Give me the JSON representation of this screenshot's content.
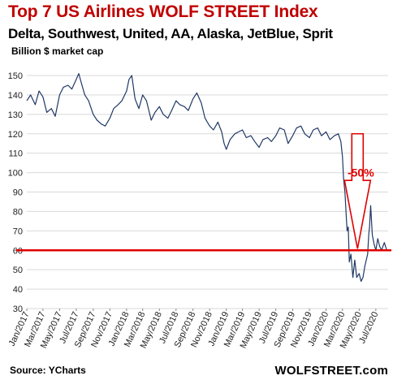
{
  "title": "Top 7 US Airlines WOLF STREET Index",
  "subtitle": "Delta, Southwest, United, AA, Alaska, JetBlue, Sprit",
  "units": "Billion $ market cap",
  "source": "Source: YCharts",
  "brand": "WOLFSTREET.com",
  "colors": {
    "title": "#c00000",
    "series": "#1f3864",
    "reference": "#e00000",
    "arrow_border": "#e00000",
    "arrow_fill": "#ffffff",
    "grid": "#d9d9d9"
  },
  "chart_data": {
    "type": "line",
    "title": "Top 7 US Airlines WOLF STREET Index",
    "subtitle": "Delta, Southwest, United, AA, Alaska, JetBlue, Sprit",
    "ylabel": "Billion $ market cap",
    "xlabel": "",
    "ylim": [
      30,
      150
    ],
    "yticks": [
      30,
      40,
      50,
      60,
      70,
      80,
      90,
      100,
      110,
      120,
      130,
      140,
      150
    ],
    "xlim": [
      "2017-01-01",
      "2020-08-15"
    ],
    "xticks": [
      "Jan/2017",
      "Mar/2017",
      "May/2017",
      "Jul/2017",
      "Sep/2017",
      "Nov/2017",
      "Jan/2018",
      "Mar/2018",
      "May/2018",
      "Jul/2018",
      "Sep/2018",
      "Nov/2018",
      "Jan/2019",
      "Mar/2019",
      "May/2019",
      "Jul/2019",
      "Sep/2019",
      "Nov/2019",
      "Jan/2020",
      "Mar/2020",
      "May/2020",
      "Jul/2020"
    ],
    "grid": {
      "horizontal": true,
      "vertical": false
    },
    "legend": "none",
    "series": [
      {
        "x": [
          "2017-01-01",
          "2017-01-15",
          "2017-02-01",
          "2017-02-15",
          "2017-03-01",
          "2017-03-15",
          "2017-04-01",
          "2017-04-15",
          "2017-05-01",
          "2017-05-15",
          "2017-06-01",
          "2017-06-15",
          "2017-07-01",
          "2017-07-10",
          "2017-07-20",
          "2017-08-01",
          "2017-08-15",
          "2017-09-01",
          "2017-09-15",
          "2017-10-01",
          "2017-10-15",
          "2017-11-01",
          "2017-11-15",
          "2017-12-01",
          "2017-12-15",
          "2018-01-01",
          "2018-01-10",
          "2018-01-20",
          "2018-02-01",
          "2018-02-15",
          "2018-03-01",
          "2018-03-15",
          "2018-04-01",
          "2018-04-15",
          "2018-05-01",
          "2018-05-15",
          "2018-06-01",
          "2018-06-15",
          "2018-07-01",
          "2018-07-15",
          "2018-08-01",
          "2018-08-15",
          "2018-09-01",
          "2018-09-15",
          "2018-10-01",
          "2018-10-15",
          "2018-11-01",
          "2018-11-15",
          "2018-12-01",
          "2018-12-15",
          "2018-12-24",
          "2019-01-01",
          "2019-01-15",
          "2019-02-01",
          "2019-02-15",
          "2019-03-01",
          "2019-03-15",
          "2019-04-01",
          "2019-04-15",
          "2019-05-01",
          "2019-05-15",
          "2019-06-01",
          "2019-06-15",
          "2019-07-01",
          "2019-07-15",
          "2019-08-01",
          "2019-08-15",
          "2019-09-01",
          "2019-09-15",
          "2019-10-01",
          "2019-10-15",
          "2019-11-01",
          "2019-11-15",
          "2019-12-01",
          "2019-12-15",
          "2020-01-01",
          "2020-01-15",
          "2020-02-01",
          "2020-02-15",
          "2020-02-24",
          "2020-03-01",
          "2020-03-05",
          "2020-03-10",
          "2020-03-15",
          "2020-03-18",
          "2020-03-22",
          "2020-03-26",
          "2020-04-01",
          "2020-04-08",
          "2020-04-15",
          "2020-04-22",
          "2020-05-01",
          "2020-05-08",
          "2020-05-15",
          "2020-05-22",
          "2020-06-01",
          "2020-06-05",
          "2020-06-08",
          "2020-06-12",
          "2020-06-18",
          "2020-06-25",
          "2020-07-01",
          "2020-07-08",
          "2020-07-15",
          "2020-07-22",
          "2020-08-01",
          "2020-08-10"
        ],
        "values": [
          137,
          140,
          135,
          142,
          139,
          131,
          133,
          129,
          140,
          144,
          145,
          143,
          148,
          151,
          146,
          140,
          137,
          130,
          127,
          125,
          124,
          128,
          133,
          135,
          137,
          142,
          148,
          150,
          138,
          133,
          140,
          137,
          127,
          131,
          134,
          130,
          128,
          132,
          137,
          135,
          134,
          132,
          138,
          141,
          136,
          128,
          124,
          122,
          126,
          121,
          115,
          112,
          117,
          120,
          121,
          122,
          118,
          119,
          116,
          113,
          117,
          118,
          116,
          119,
          123,
          122,
          115,
          119,
          123,
          124,
          120,
          118,
          122,
          123,
          119,
          121,
          117,
          119,
          120,
          116,
          108,
          97,
          90,
          77,
          70,
          72,
          54,
          58,
          46,
          55,
          46,
          48,
          44,
          46,
          52,
          58,
          68,
          72,
          83,
          68,
          63,
          60,
          66,
          62,
          60,
          64,
          60
        ]
      }
    ],
    "annotations": [
      {
        "text": "-50%",
        "type": "down-arrow",
        "color": "#e00000",
        "from_date": "2020-04-25",
        "from_value": 120,
        "to_value": 60
      },
      {
        "type": "horizontal-line",
        "value": 60,
        "color": "#e00000"
      }
    ]
  }
}
